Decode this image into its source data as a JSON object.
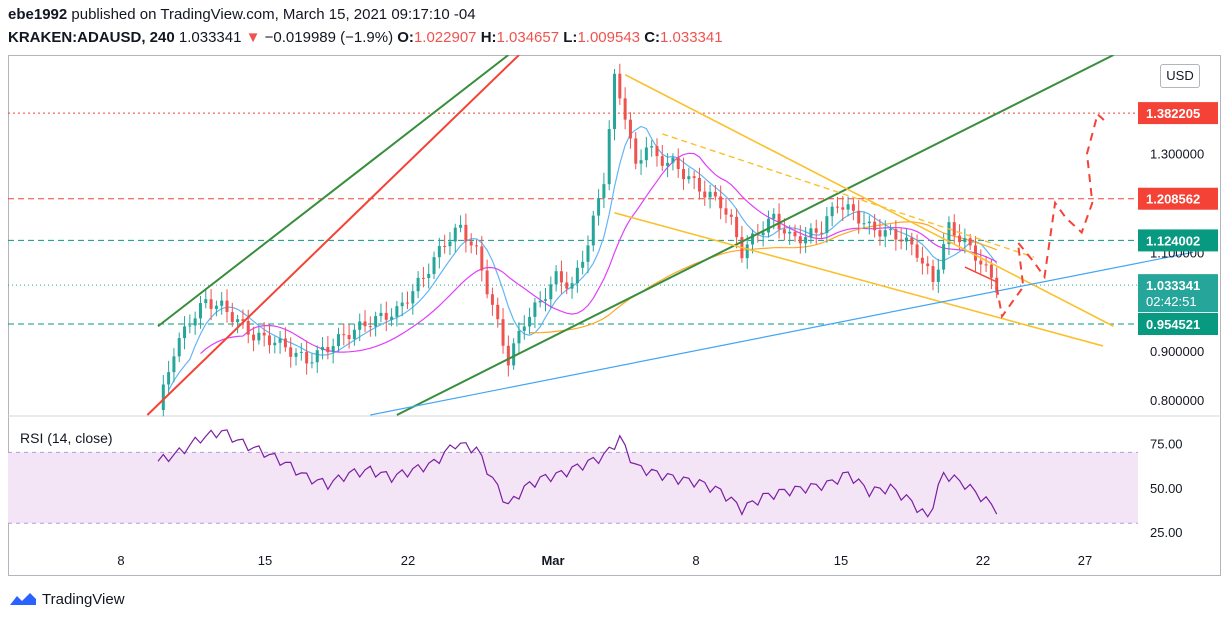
{
  "header": {
    "author": "ebe1992",
    "published_text": "published on TradingView.com, March 15, 2021 09:17:10 -04",
    "symbol": "KRAKEN:ADAUSD, 240",
    "last": "1.033341",
    "change": "−0.019989 (−1.9%)",
    "o_label": "O:",
    "o_value": "1.022907",
    "h_label": "H:",
    "h_value": "1.034657",
    "l_label": "L:",
    "l_value": "1.009543",
    "c_label": "C:",
    "c_value": "1.033341"
  },
  "currency": "USD",
  "brand": "TradingView",
  "colors": {
    "up": "#26a69a",
    "down": "#ef5350",
    "green_line": "#388e3c",
    "red_line": "#f44336",
    "yellow_line": "#fbc02d",
    "blue_line": "#42a5f5",
    "ma_fast": "#64b5f6",
    "ma_mid": "#e040fb",
    "ma_slow": "#ffa726",
    "rsi": "#7b1fa2",
    "rsi_band": "#f3e5f5"
  },
  "chart_data": [
    {
      "type": "candlestick",
      "symbol": "KRAKEN:ADAUSD",
      "interval": "240",
      "ylim": [
        0.77,
        1.5
      ],
      "y_ticks": [
        "0.800000",
        "0.900000",
        "1.100000",
        "1.300000"
      ],
      "x_ticks": [
        "8",
        "15",
        "22",
        "Mar",
        "8",
        "15",
        "22",
        "27"
      ],
      "price_labels": [
        {
          "value": 1.382205,
          "text": "1.382205",
          "color": "#f44336"
        },
        {
          "value": 1.208562,
          "text": "1.208562",
          "color": "#f44336"
        },
        {
          "value": 1.124002,
          "text": "1.124002",
          "color": "#089981"
        },
        {
          "value": 1.033341,
          "text": "1.033341",
          "sub": "02:42:51",
          "color": "#26a69a"
        },
        {
          "value": 0.954521,
          "text": "0.954521",
          "color": "#089981"
        }
      ],
      "close_path": [
        [
          0,
          0.78
        ],
        [
          3,
          0.9
        ],
        [
          6,
          0.96
        ],
        [
          9,
          1.0
        ],
        [
          12,
          0.99
        ],
        [
          15,
          0.96
        ],
        [
          18,
          0.93
        ],
        [
          22,
          0.92
        ],
        [
          25,
          0.9
        ],
        [
          28,
          0.88
        ],
        [
          31,
          0.9
        ],
        [
          35,
          0.93
        ],
        [
          40,
          0.96
        ],
        [
          45,
          0.98
        ],
        [
          50,
          1.05
        ],
        [
          54,
          1.12
        ],
        [
          57,
          1.15
        ],
        [
          60,
          1.1
        ],
        [
          63,
          0.99
        ],
        [
          66,
          0.88
        ],
        [
          69,
          0.96
        ],
        [
          72,
          1.0
        ],
        [
          75,
          1.05
        ],
        [
          78,
          1.03
        ],
        [
          81,
          1.12
        ],
        [
          84,
          1.25
        ],
        [
          86,
          1.45
        ],
        [
          88,
          1.38
        ],
        [
          90,
          1.27
        ],
        [
          92,
          1.32
        ],
        [
          94,
          1.29
        ],
        [
          97,
          1.28
        ],
        [
          100,
          1.25
        ],
        [
          103,
          1.22
        ],
        [
          106,
          1.2
        ],
        [
          108,
          1.16
        ],
        [
          110,
          1.1
        ],
        [
          113,
          1.14
        ],
        [
          116,
          1.17
        ],
        [
          119,
          1.13
        ],
        [
          122,
          1.13
        ],
        [
          125,
          1.15
        ],
        [
          128,
          1.2
        ],
        [
          131,
          1.18
        ],
        [
          134,
          1.15
        ],
        [
          137,
          1.14
        ],
        [
          140,
          1.13
        ],
        [
          143,
          1.1
        ],
        [
          146,
          1.04
        ],
        [
          149,
          1.15
        ],
        [
          152,
          1.12
        ],
        [
          155,
          1.08
        ],
        [
          158,
          1.03
        ]
      ],
      "projection_path": [
        [
          158,
          1.03
        ],
        [
          159,
          0.97
        ],
        [
          161,
          1.0
        ],
        [
          163,
          1.03
        ],
        [
          162,
          1.12
        ],
        [
          165,
          1.08
        ],
        [
          167,
          1.05
        ],
        [
          169,
          1.2
        ],
        [
          171,
          1.17
        ],
        [
          174,
          1.14
        ],
        [
          176,
          1.2
        ],
        [
          175,
          1.3
        ],
        [
          177,
          1.38
        ],
        [
          179,
          1.36
        ]
      ],
      "series": [
        {
          "name": "",
          "kind": "ma_fast"
        },
        {
          "name": "",
          "kind": "ma_mid"
        },
        {
          "name": "",
          "kind": "ma_slow"
        }
      ]
    },
    {
      "type": "line",
      "title": "RSI (14, close)",
      "ylim": [
        20,
        90
      ],
      "y_ticks": [
        "75.00",
        "50.00",
        "25.00"
      ],
      "band": [
        30,
        70
      ],
      "values": [
        [
          0,
          65
        ],
        [
          4,
          70
        ],
        [
          8,
          78
        ],
        [
          12,
          82
        ],
        [
          16,
          75
        ],
        [
          20,
          70
        ],
        [
          24,
          64
        ],
        [
          28,
          56
        ],
        [
          32,
          52
        ],
        [
          36,
          58
        ],
        [
          40,
          60
        ],
        [
          44,
          56
        ],
        [
          48,
          60
        ],
        [
          52,
          64
        ],
        [
          56,
          75
        ],
        [
          60,
          72
        ],
        [
          63,
          55
        ],
        [
          66,
          40
        ],
        [
          69,
          50
        ],
        [
          72,
          55
        ],
        [
          76,
          58
        ],
        [
          80,
          63
        ],
        [
          84,
          68
        ],
        [
          87,
          78
        ],
        [
          90,
          62
        ],
        [
          94,
          58
        ],
        [
          98,
          55
        ],
        [
          102,
          53
        ],
        [
          106,
          48
        ],
        [
          110,
          38
        ],
        [
          114,
          45
        ],
        [
          118,
          48
        ],
        [
          122,
          50
        ],
        [
          126,
          52
        ],
        [
          130,
          58
        ],
        [
          134,
          48
        ],
        [
          138,
          50
        ],
        [
          142,
          42
        ],
        [
          145,
          33
        ],
        [
          148,
          58
        ],
        [
          152,
          52
        ],
        [
          155,
          45
        ],
        [
          158,
          38
        ]
      ]
    }
  ]
}
